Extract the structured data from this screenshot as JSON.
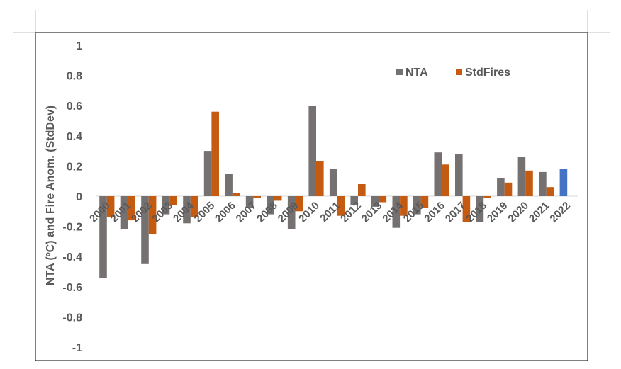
{
  "chart_data": {
    "type": "bar",
    "categories": [
      "2000",
      "2001",
      "2002",
      "2003",
      "2004",
      "2005",
      "2006",
      "2007",
      "2008",
      "2009",
      "2010",
      "2011",
      "2012",
      "2013",
      "2014",
      "2015",
      "2016",
      "2017",
      "2018",
      "2019",
      "2020",
      "2021",
      "2022"
    ],
    "series": [
      {
        "name": "NTA",
        "color": "#767171",
        "values": [
          -0.54,
          -0.22,
          -0.45,
          -0.12,
          -0.18,
          0.3,
          0.15,
          -0.08,
          -0.12,
          -0.22,
          0.6,
          0.18,
          -0.06,
          -0.07,
          -0.21,
          -0.12,
          0.29,
          0.28,
          -0.17,
          0.12,
          0.26,
          0.16,
          0.18
        ],
        "highlight": {
          "index": 22,
          "color": "#4472C4"
        }
      },
      {
        "name": "StdFires",
        "color": "#C55A11",
        "values": [
          -0.14,
          -0.16,
          -0.25,
          -0.06,
          -0.14,
          0.56,
          0.02,
          -0.01,
          -0.03,
          -0.1,
          0.23,
          -0.13,
          0.08,
          -0.04,
          -0.13,
          -0.08,
          0.21,
          -0.17,
          -0.01,
          0.09,
          0.17,
          0.06,
          null
        ]
      }
    ],
    "ylabel": "NTA (ºC) and Fire Anom.  (StdDev)",
    "ylim": [
      -1,
      1
    ],
    "yticks": [
      1,
      0.8,
      0.6,
      0.4,
      0.2,
      0,
      -0.2,
      -0.4,
      -0.6,
      -0.8,
      -1
    ],
    "grid": false,
    "legend_position": "top-right"
  }
}
